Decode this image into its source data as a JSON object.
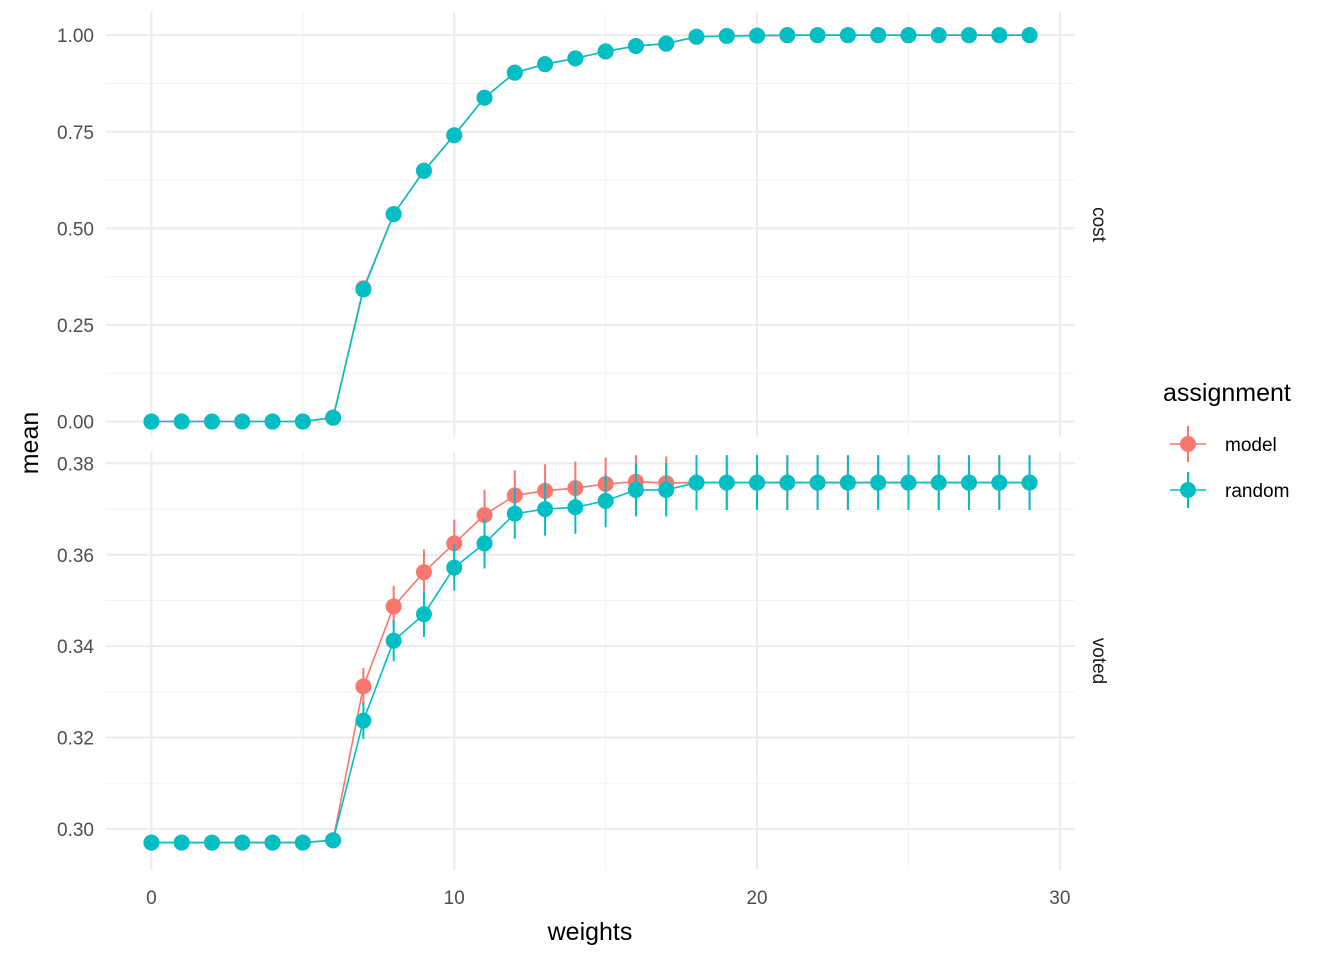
{
  "chart_data": {
    "type": "line",
    "xlabel": "weights",
    "ylabel": "mean",
    "xlim": [
      -1.5,
      30.5
    ],
    "x_ticks": [
      0,
      10,
      20,
      30
    ],
    "x_tick_labels": [
      "0",
      "10",
      "20",
      "30"
    ],
    "grid": true,
    "legend": {
      "title": "assignment",
      "position": "right",
      "entries": [
        {
          "label": "model",
          "color": "#F8766D"
        },
        {
          "label": "random",
          "color": "#00BFC4"
        }
      ]
    },
    "facets": [
      {
        "label": "cost",
        "ylim": [
          -0.04,
          1.06
        ],
        "y_ticks": [
          0,
          0.25,
          0.5,
          0.75,
          1.0
        ],
        "y_tick_labels": [
          "0.00",
          "0.25",
          "0.50",
          "0.75",
          "1.00"
        ],
        "x": [
          0,
          1,
          2,
          3,
          4,
          5,
          6,
          7,
          8,
          9,
          10,
          11,
          12,
          13,
          14,
          15,
          16,
          17,
          18,
          19,
          20,
          21,
          22,
          23,
          24,
          25,
          26,
          27,
          28,
          29
        ],
        "series": [
          {
            "name": "model",
            "color": "#F8766D",
            "values": [
              0,
              0,
              0,
              0,
              0,
              0,
              0.01,
              0.345,
              0.537,
              0.649,
              0.741,
              0.838,
              0.903,
              0.925,
              0.94,
              0.958,
              0.972,
              0.978,
              0.996,
              0.998,
              0.999,
              1,
              1,
              1,
              1,
              1,
              1,
              1,
              1,
              1
            ],
            "err": [
              0,
              0,
              0,
              0,
              0,
              0,
              0,
              0,
              0,
              0,
              0,
              0,
              0,
              0,
              0,
              0,
              0,
              0,
              0,
              0,
              0,
              0,
              0,
              0,
              0,
              0,
              0,
              0,
              0,
              0
            ]
          },
          {
            "name": "random",
            "color": "#00BFC4",
            "values": [
              0,
              0,
              0,
              0,
              0,
              0,
              0.01,
              0.342,
              0.537,
              0.649,
              0.741,
              0.838,
              0.903,
              0.925,
              0.94,
              0.958,
              0.972,
              0.978,
              0.996,
              0.998,
              0.999,
              1,
              1,
              1,
              1,
              1,
              1,
              1,
              1,
              1
            ],
            "err": [
              0,
              0,
              0,
              0,
              0,
              0,
              0,
              0,
              0,
              0,
              0,
              0,
              0,
              0,
              0,
              0,
              0,
              0,
              0,
              0,
              0,
              0,
              0,
              0,
              0,
              0,
              0,
              0,
              0,
              0
            ]
          }
        ]
      },
      {
        "label": "voted",
        "ylim": [
          0.291,
          0.3825
        ],
        "y_ticks": [
          0.3,
          0.32,
          0.34,
          0.36,
          0.38
        ],
        "y_tick_labels": [
          "0.30",
          "0.32",
          "0.34",
          "0.36",
          "0.38"
        ],
        "x": [
          0,
          1,
          2,
          3,
          4,
          5,
          6,
          7,
          8,
          9,
          10,
          11,
          12,
          13,
          14,
          15,
          16,
          17,
          18,
          19,
          20,
          21,
          22,
          23,
          24,
          25,
          26,
          27,
          28,
          29
        ],
        "series": [
          {
            "name": "model",
            "color": "#F8766D",
            "values": [
              0.297,
              0.297,
              0.297,
              0.297,
              0.297,
              0.297,
              0.2975,
              0.3312,
              0.3487,
              0.3562,
              0.3625,
              0.3687,
              0.373,
              0.374,
              0.3746,
              0.3755,
              0.376,
              0.3757,
              0.3758,
              0.3758,
              0.3758,
              0.3758,
              0.3758,
              0.3758,
              0.3758,
              0.3758,
              0.3758,
              0.3758,
              0.3758,
              0.3758
            ],
            "err": [
              0.0008,
              0.0008,
              0.0008,
              0.0008,
              0.0008,
              0.0008,
              0.0008,
              0.004,
              0.0045,
              0.005,
              0.0052,
              0.0055,
              0.0055,
              0.0058,
              0.0058,
              0.0058,
              0.0058,
              0.0058,
              0.006,
              0.006,
              0.006,
              0.006,
              0.006,
              0.006,
              0.006,
              0.006,
              0.006,
              0.006,
              0.006,
              0.006
            ]
          },
          {
            "name": "random",
            "color": "#00BFC4",
            "values": [
              0.297,
              0.297,
              0.297,
              0.297,
              0.297,
              0.297,
              0.2975,
              0.3237,
              0.3412,
              0.347,
              0.3572,
              0.3625,
              0.369,
              0.37,
              0.3704,
              0.3718,
              0.3742,
              0.3742,
              0.3758,
              0.3758,
              0.3758,
              0.3758,
              0.3758,
              0.3758,
              0.3758,
              0.3758,
              0.3758,
              0.3758,
              0.3758,
              0.3758
            ],
            "err": [
              0.0008,
              0.0008,
              0.0008,
              0.0008,
              0.0008,
              0.0008,
              0.0008,
              0.004,
              0.0045,
              0.005,
              0.005,
              0.0055,
              0.0055,
              0.0058,
              0.0058,
              0.0058,
              0.0058,
              0.0058,
              0.006,
              0.006,
              0.006,
              0.006,
              0.006,
              0.006,
              0.006,
              0.006,
              0.006,
              0.006,
              0.006,
              0.006
            ]
          }
        ]
      }
    ]
  }
}
